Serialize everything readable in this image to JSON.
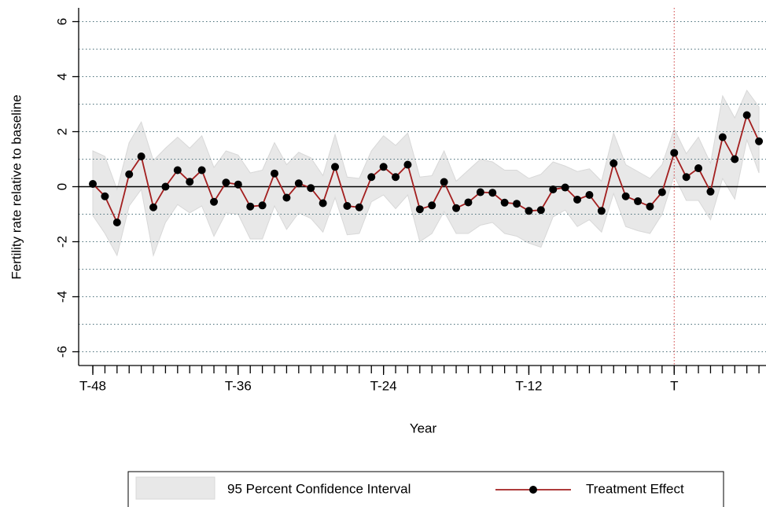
{
  "chart_data": {
    "type": "line",
    "x_label": "Year",
    "y_label": "Fertility rate relative to baseline",
    "x": [
      -48,
      -47,
      -46,
      -45,
      -44,
      -43,
      -42,
      -41,
      -40,
      -39,
      -38,
      -37,
      -36,
      -35,
      -34,
      -33,
      -32,
      -31,
      -30,
      -29,
      -28,
      -27,
      -26,
      -25,
      -24,
      -23,
      -22,
      -21,
      -20,
      -19,
      -18,
      -17,
      -16,
      -15,
      -14,
      -13,
      -12,
      -11,
      -10,
      -9,
      -8,
      -7,
      -6,
      -5,
      -4,
      -3,
      -2,
      -1,
      0,
      1,
      2,
      3,
      4,
      5,
      6,
      7
    ],
    "series": [
      {
        "name": "95 Percent Confidence Interval",
        "kind": "band",
        "color": "#e8e8e8",
        "upper": [
          1.3,
          1.1,
          -0.1,
          1.6,
          2.35,
          0.95,
          1.4,
          1.8,
          1.4,
          1.85,
          0.7,
          1.3,
          1.15,
          0.5,
          0.6,
          1.6,
          0.8,
          1.25,
          1.05,
          0.4,
          1.9,
          0.35,
          0.3,
          1.3,
          1.85,
          1.5,
          1.95,
          0.35,
          0.4,
          1.3,
          0.2,
          0.6,
          1.0,
          0.9,
          0.6,
          0.6,
          0.3,
          0.45,
          0.9,
          0.75,
          0.55,
          0.65,
          0.2,
          1.95,
          0.8,
          0.55,
          0.3,
          0.8,
          2.1,
          1.2,
          1.8,
          0.85,
          3.3,
          2.5,
          3.5,
          2.9
        ],
        "lower": [
          -1.05,
          -1.7,
          -2.5,
          -0.7,
          -0.1,
          -2.5,
          -1.3,
          -0.65,
          -0.95,
          -0.7,
          -1.8,
          -0.95,
          -1.0,
          -1.9,
          -1.9,
          -0.7,
          -1.55,
          -0.95,
          -1.15,
          -1.65,
          -0.4,
          -1.75,
          -1.7,
          -0.55,
          -0.3,
          -0.8,
          -0.3,
          -2.0,
          -1.7,
          -0.9,
          -1.7,
          -1.7,
          -1.4,
          -1.3,
          -1.7,
          -1.8,
          -2.05,
          -2.2,
          -1.1,
          -0.85,
          -1.45,
          -1.2,
          -1.65,
          -0.25,
          -1.45,
          -1.6,
          -1.7,
          -1.0,
          0.4,
          -0.5,
          -0.5,
          -1.2,
          0.3,
          -0.45,
          1.7,
          0.5
        ]
      },
      {
        "name": "Treatment Effect",
        "kind": "line",
        "color": "#a31f1f",
        "marker_color": "#000000",
        "values": [
          0.1,
          -0.35,
          -1.3,
          0.45,
          1.1,
          -0.75,
          0.0,
          0.6,
          0.18,
          0.6,
          -0.55,
          0.15,
          0.08,
          -0.72,
          -0.68,
          0.48,
          -0.4,
          0.12,
          -0.05,
          -0.6,
          0.72,
          -0.7,
          -0.75,
          0.35,
          0.72,
          0.35,
          0.8,
          -0.82,
          -0.68,
          0.17,
          -0.78,
          -0.57,
          -0.2,
          -0.22,
          -0.58,
          -0.62,
          -0.88,
          -0.85,
          -0.1,
          -0.03,
          -0.47,
          -0.3,
          -0.88,
          0.85,
          -0.35,
          -0.53,
          -0.72,
          -0.2,
          1.23,
          0.35,
          0.67,
          -0.18,
          1.8,
          1.0,
          2.6,
          1.65
        ]
      }
    ],
    "xlim": [
      -49.17,
      7.58
    ],
    "ylim": [
      -6.5,
      6.5
    ],
    "xticks": [
      {
        "value": -48,
        "label": "T-48"
      },
      {
        "value": -36,
        "label": "T-36"
      },
      {
        "value": -24,
        "label": "T-24"
      },
      {
        "value": -12,
        "label": "T-12"
      },
      {
        "value": 0,
        "label": "T"
      }
    ],
    "xminorticks": [
      -48,
      -47,
      -46,
      -45,
      -44,
      -43,
      -42,
      -41,
      -40,
      -39,
      -38,
      -37,
      -36,
      -35,
      -34,
      -33,
      -32,
      -31,
      -30,
      -29,
      -28,
      -27,
      -26,
      -25,
      -24,
      -23,
      -22,
      -21,
      -20,
      -19,
      -18,
      -17,
      -16,
      -15,
      -14,
      -13,
      -12,
      -11,
      -10,
      -9,
      -8,
      -7,
      -6,
      -5,
      -4,
      -3,
      -2,
      -1,
      0,
      1,
      2,
      3,
      4,
      5,
      6,
      7
    ],
    "yticks": [
      -6,
      -4,
      -2,
      0,
      2,
      4,
      6
    ],
    "grid_lines": [
      -6,
      -5,
      -4,
      -3,
      -2,
      -1,
      0,
      1,
      2,
      3,
      4,
      5,
      6
    ],
    "hline": 0,
    "vline": 0,
    "vline_color": "#d04040",
    "legend": "bottom"
  }
}
